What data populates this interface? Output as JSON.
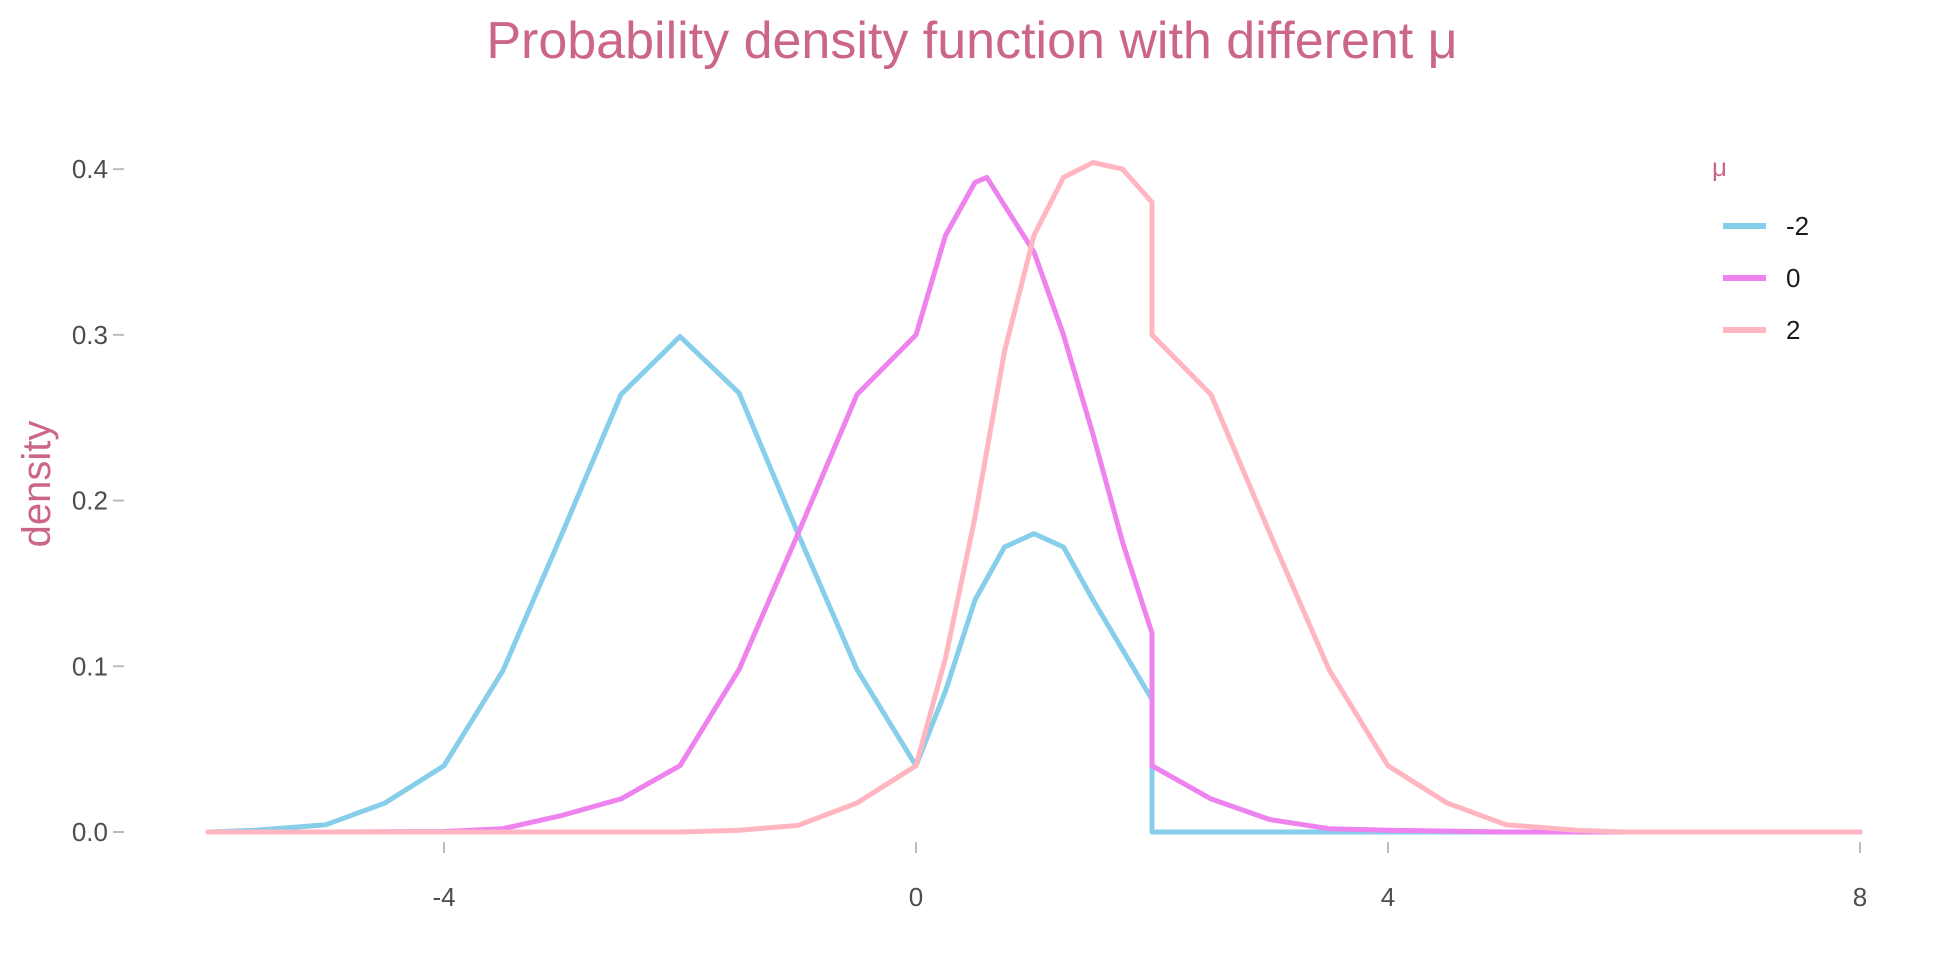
{
  "chart_data": {
    "type": "line",
    "title": "Probability density function with different μ",
    "xlabel": "",
    "ylabel": "density",
    "xlim": [
      -6,
      8
    ],
    "ylim": [
      0,
      0.42
    ],
    "xticks": [
      -4,
      0,
      4,
      8
    ],
    "xtick_labels": [
      "-4",
      "0",
      "4",
      "8"
    ],
    "yticks": [
      0.0,
      0.1,
      0.2,
      0.3,
      0.4
    ],
    "ytick_labels": [
      "0.0",
      "0.1",
      "0.2",
      "0.3",
      "0.4"
    ],
    "grid": false,
    "legend": {
      "title": "μ",
      "position": "top-right"
    },
    "accent_color": "#cc6688",
    "series": [
      {
        "name": "-2",
        "color": "#87ceeb",
        "points": [
          [
            -6,
            0.0
          ],
          [
            -5.6,
            0.001
          ],
          [
            -5,
            0.0044
          ],
          [
            -4.5,
            0.0175
          ],
          [
            -4,
            0.04
          ],
          [
            -3.5,
            0.0975
          ],
          [
            -3,
            0.18
          ],
          [
            -2.5,
            0.264
          ],
          [
            -2,
            0.299
          ],
          [
            -1.5,
            0.265
          ],
          [
            -1,
            0.18
          ],
          [
            -0.5,
            0.098
          ],
          [
            0,
            0.04
          ],
          [
            0.25,
            0.085
          ],
          [
            0.5,
            0.14
          ],
          [
            0.75,
            0.172
          ],
          [
            1,
            0.18
          ],
          [
            1.25,
            0.172
          ],
          [
            1.5,
            0.14
          ],
          [
            1.75,
            0.11
          ],
          [
            2,
            0.08
          ],
          [
            2,
            0.0
          ],
          [
            4,
            0.0
          ],
          [
            6,
            0.0
          ],
          [
            8,
            0.0
          ]
        ]
      },
      {
        "name": "0",
        "color": "#ee82ee",
        "points": [
          [
            -6,
            0.0
          ],
          [
            -5,
            0.0
          ],
          [
            -4,
            0.0003
          ],
          [
            -3.5,
            0.002
          ],
          [
            -3,
            0.01
          ],
          [
            -2.5,
            0.02
          ],
          [
            -2,
            0.04
          ],
          [
            -1.5,
            0.098
          ],
          [
            -1,
            0.18
          ],
          [
            -0.5,
            0.264
          ],
          [
            0,
            0.3
          ],
          [
            0.25,
            0.36
          ],
          [
            0.5,
            0.392
          ],
          [
            0.6,
            0.395
          ],
          [
            1,
            0.35
          ],
          [
            1.25,
            0.3
          ],
          [
            1.5,
            0.24
          ],
          [
            1.75,
            0.175
          ],
          [
            2,
            0.12
          ],
          [
            2,
            0.04
          ],
          [
            2.5,
            0.02
          ],
          [
            3,
            0.0075
          ],
          [
            3.5,
            0.002
          ],
          [
            4,
            0.001
          ],
          [
            5,
            0.0
          ],
          [
            6,
            0.0
          ],
          [
            8,
            0.0
          ]
        ]
      },
      {
        "name": "2",
        "color": "#ffb6c1",
        "points": [
          [
            -6,
            0.0
          ],
          [
            -4,
            0.0
          ],
          [
            -3,
            0.0
          ],
          [
            -2,
            0.0
          ],
          [
            -1.5,
            0.001
          ],
          [
            -1,
            0.004
          ],
          [
            -0.5,
            0.0175
          ],
          [
            0,
            0.04
          ],
          [
            0.25,
            0.105
          ],
          [
            0.5,
            0.19
          ],
          [
            0.75,
            0.29
          ],
          [
            1,
            0.36
          ],
          [
            1.25,
            0.395
          ],
          [
            1.5,
            0.404
          ],
          [
            1.75,
            0.4
          ],
          [
            2,
            0.38
          ],
          [
            2,
            0.3
          ],
          [
            2.5,
            0.264
          ],
          [
            3,
            0.18
          ],
          [
            3.5,
            0.098
          ],
          [
            4,
            0.04
          ],
          [
            4.5,
            0.0175
          ],
          [
            5,
            0.0044
          ],
          [
            5.6,
            0.001
          ],
          [
            6,
            0.0
          ],
          [
            8,
            0.0
          ]
        ]
      }
    ]
  }
}
